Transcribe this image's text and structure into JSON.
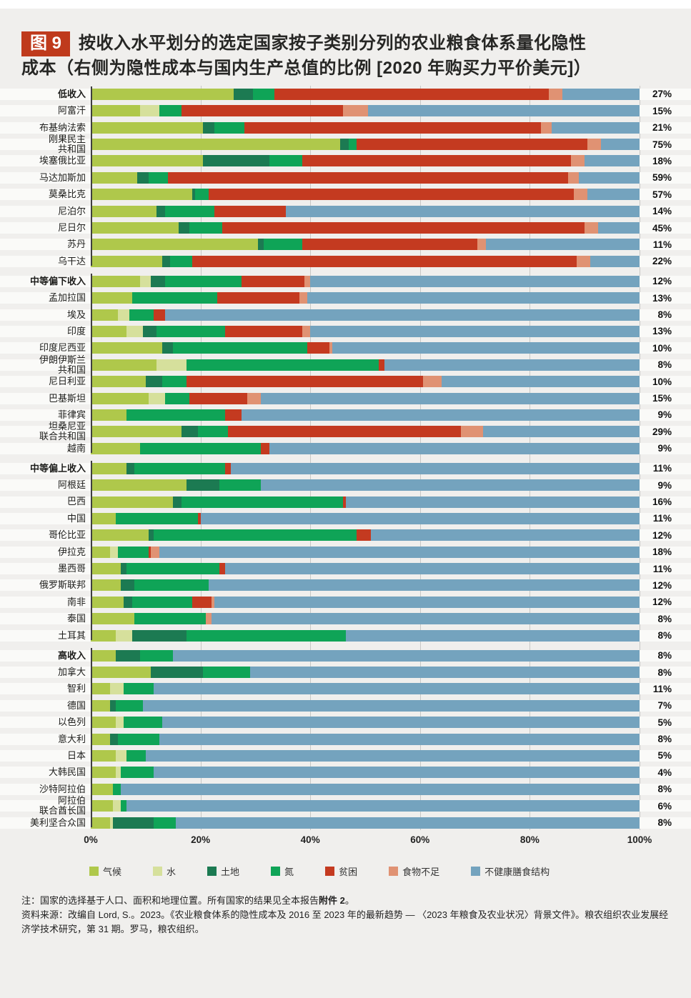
{
  "header": {
    "badge": "图 9",
    "title": "按收入水平划分的选定国家按子类别分列的农业粮食体系量化隐性成本（右侧为隐性成本与国内生产总值的比例 [2020 年购买力平价美元]）"
  },
  "colors": {
    "climate": "#AFC84B",
    "water": "#D6E09C",
    "land": "#1C7A52",
    "nitrogen": "#0FA457",
    "poverty": "#C43A20",
    "undernourishment": "#E09273",
    "unhealthy_diet": "#74A3BE",
    "badge_bg": "#BF3A1C",
    "axis_line": "#3F3F3F",
    "gridline": "#C8C8C5",
    "page_bg": "#F0EFED",
    "row_stripe": "#FAFAF8"
  },
  "chart_data": {
    "type": "bar",
    "stacked": true,
    "orientation": "horizontal",
    "unit": "percent of total hidden costs",
    "xlim": [
      0,
      100
    ],
    "x_ticks": [
      "0%",
      "20%",
      "40%",
      "60%",
      "80%",
      "100%"
    ],
    "gridline_positions": [
      20,
      40,
      60,
      80,
      100
    ],
    "legend": [
      {
        "key": "climate",
        "label": "气候"
      },
      {
        "key": "water",
        "label": "水"
      },
      {
        "key": "land",
        "label": "土地"
      },
      {
        "key": "nitrogen",
        "label": "氮"
      },
      {
        "key": "poverty",
        "label": "贫困"
      },
      {
        "key": "undernourishment",
        "label": "食物不足"
      },
      {
        "key": "unhealthy_diet",
        "label": "不健康膳食结构"
      }
    ],
    "value_order": [
      "climate",
      "water",
      "land",
      "nitrogen",
      "poverty",
      "undernourishment",
      "unhealthy_diet"
    ],
    "right_column_meaning": "隐性成本与国内生产总值的比例",
    "groups": [
      {
        "name": "低收入",
        "rows": [
          {
            "label": "低收入",
            "bold": true,
            "gdp_ratio": "27%",
            "values": [
              26,
              0,
              3.5,
              4,
              50,
              2.5,
              14
            ]
          },
          {
            "label": "阿富汗",
            "bold": false,
            "gdp_ratio": "15%",
            "values": [
              9,
              3.5,
              0,
              4,
              29.5,
              4.5,
              49.5
            ]
          },
          {
            "label": "布基纳法索",
            "bold": false,
            "gdp_ratio": "21%",
            "values": [
              20.5,
              0,
              2,
              5.5,
              54,
              2,
              16
            ]
          },
          {
            "label": "刚果民主\n共和国",
            "bold": false,
            "gdp_ratio": "75%",
            "values": [
              45.5,
              0,
              1.5,
              1.5,
              42,
              2.5,
              7
            ]
          },
          {
            "label": "埃塞俄比亚",
            "bold": false,
            "gdp_ratio": "18%",
            "values": [
              20.5,
              0,
              12,
              6,
              49,
              2.5,
              10
            ]
          },
          {
            "label": "马达加斯加",
            "bold": false,
            "gdp_ratio": "59%",
            "values": [
              8.5,
              0,
              2,
              3.5,
              73,
              2,
              11
            ]
          },
          {
            "label": "莫桑比克",
            "bold": false,
            "gdp_ratio": "57%",
            "values": [
              18.5,
              0,
              0.5,
              2.5,
              66.5,
              2.5,
              9.5
            ]
          },
          {
            "label": "尼泊尔",
            "bold": false,
            "gdp_ratio": "14%",
            "values": [
              12,
              0,
              1.5,
              9,
              13,
              0,
              64.5
            ]
          },
          {
            "label": "尼日尔",
            "bold": false,
            "gdp_ratio": "45%",
            "values": [
              16,
              0,
              2,
              6,
              66,
              2.5,
              7.5
            ]
          },
          {
            "label": "苏丹",
            "bold": false,
            "gdp_ratio": "11%",
            "values": [
              30.5,
              0,
              1,
              7,
              32,
              1.5,
              28
            ]
          },
          {
            "label": "乌干达",
            "bold": false,
            "gdp_ratio": "22%",
            "values": [
              13,
              0,
              1.5,
              4,
              70,
              2.5,
              9
            ]
          }
        ]
      },
      {
        "name": "中等偏下收入",
        "rows": [
          {
            "label": "中等偏下收入",
            "bold": true,
            "gdp_ratio": "12%",
            "values": [
              9,
              2,
              2.5,
              14,
              11.5,
              1,
              60
            ]
          },
          {
            "label": "孟加拉国",
            "bold": false,
            "gdp_ratio": "13%",
            "values": [
              7.5,
              0,
              0,
              15.5,
              15,
              1.5,
              60.5
            ]
          },
          {
            "label": "埃及",
            "bold": false,
            "gdp_ratio": "8%",
            "values": [
              5,
              2,
              0,
              4.5,
              2,
              0,
              86.5
            ]
          },
          {
            "label": "印度",
            "bold": false,
            "gdp_ratio": "13%",
            "values": [
              6.5,
              3,
              2.5,
              12.5,
              14,
              1.5,
              60
            ]
          },
          {
            "label": "印度尼西亚",
            "bold": false,
            "gdp_ratio": "10%",
            "values": [
              13,
              0,
              2,
              24.5,
              4,
              0.5,
              56
            ]
          },
          {
            "label": "伊朗伊斯兰\n共和国",
            "bold": false,
            "gdp_ratio": "8%",
            "values": [
              12,
              5.5,
              0,
              35,
              1,
              0,
              46.5
            ]
          },
          {
            "label": "尼日利亚",
            "bold": false,
            "gdp_ratio": "10%",
            "values": [
              10,
              0,
              3,
              4.5,
              43,
              3.5,
              36
            ]
          },
          {
            "label": "巴基斯坦",
            "bold": false,
            "gdp_ratio": "15%",
            "values": [
              10.5,
              3,
              0,
              4.5,
              10.5,
              2.5,
              69
            ]
          },
          {
            "label": "菲律宾",
            "bold": false,
            "gdp_ratio": "9%",
            "values": [
              6.5,
              0,
              0,
              18,
              3,
              0,
              72.5
            ]
          },
          {
            "label": "坦桑尼亚\n联合共和国",
            "bold": false,
            "gdp_ratio": "29%",
            "values": [
              16.5,
              0,
              3,
              5.5,
              42.5,
              4,
              28.5
            ]
          },
          {
            "label": "越南",
            "bold": false,
            "gdp_ratio": "9%",
            "values": [
              9,
              0,
              0,
              22,
              1.5,
              0,
              67.5
            ]
          }
        ]
      },
      {
        "name": "中等偏上收入",
        "rows": [
          {
            "label": "中等偏上收入",
            "bold": true,
            "gdp_ratio": "11%",
            "values": [
              6.5,
              0,
              1.5,
              16.5,
              1,
              0,
              74.5
            ]
          },
          {
            "label": "阿根廷",
            "bold": false,
            "gdp_ratio": "9%",
            "values": [
              17.5,
              0,
              6,
              7.5,
              0,
              0,
              69
            ]
          },
          {
            "label": "巴西",
            "bold": false,
            "gdp_ratio": "16%",
            "values": [
              15,
              0,
              1.5,
              29.5,
              0.5,
              0,
              53.5
            ]
          },
          {
            "label": "中国",
            "bold": false,
            "gdp_ratio": "11%",
            "values": [
              4.5,
              0,
              0,
              15,
              0.5,
              0,
              80
            ]
          },
          {
            "label": "哥伦比亚",
            "bold": false,
            "gdp_ratio": "12%",
            "values": [
              10.5,
              0,
              1,
              37,
              2.5,
              0,
              49
            ]
          },
          {
            "label": "伊拉克",
            "bold": false,
            "gdp_ratio": "18%",
            "values": [
              3.5,
              1.5,
              0,
              5.5,
              0.5,
              1.5,
              87.5
            ]
          },
          {
            "label": "墨西哥",
            "bold": false,
            "gdp_ratio": "11%",
            "values": [
              5.5,
              0,
              1,
              17,
              1,
              0,
              75.5
            ]
          },
          {
            "label": "俄罗斯联邦",
            "bold": false,
            "gdp_ratio": "12%",
            "values": [
              5.5,
              0,
              2.5,
              13.5,
              0,
              0,
              78.5
            ]
          },
          {
            "label": "南非",
            "bold": false,
            "gdp_ratio": "12%",
            "values": [
              6,
              0,
              1.5,
              11,
              3.5,
              0.5,
              77.5
            ]
          },
          {
            "label": "泰国",
            "bold": false,
            "gdp_ratio": "8%",
            "values": [
              8,
              0,
              0,
              13,
              0,
              1,
              78
            ]
          },
          {
            "label": "土耳其",
            "bold": false,
            "gdp_ratio": "8%",
            "values": [
              4.5,
              3,
              10,
              29,
              0,
              0,
              53.5
            ]
          }
        ]
      },
      {
        "name": "高收入",
        "rows": [
          {
            "label": "高收入",
            "bold": true,
            "gdp_ratio": "8%",
            "values": [
              4.5,
              0,
              4.5,
              6,
              0,
              0,
              85
            ]
          },
          {
            "label": "加拿大",
            "bold": false,
            "gdp_ratio": "8%",
            "values": [
              11,
              0,
              9.5,
              8.5,
              0,
              0,
              71
            ]
          },
          {
            "label": "智利",
            "bold": false,
            "gdp_ratio": "11%",
            "values": [
              3.5,
              2.5,
              0,
              5.5,
              0,
              0,
              88.5
            ]
          },
          {
            "label": "德国",
            "bold": false,
            "gdp_ratio": "7%",
            "values": [
              3.5,
              0,
              1,
              5,
              0,
              0,
              90.5
            ]
          },
          {
            "label": "以色列",
            "bold": false,
            "gdp_ratio": "5%",
            "values": [
              4.5,
              1.5,
              0,
              7,
              0,
              0,
              87
            ]
          },
          {
            "label": "意大利",
            "bold": false,
            "gdp_ratio": "8%",
            "values": [
              3.5,
              0,
              1.5,
              7.5,
              0,
              0,
              87.5
            ]
          },
          {
            "label": "日本",
            "bold": false,
            "gdp_ratio": "5%",
            "values": [
              4.5,
              2,
              0,
              3.5,
              0,
              0,
              90
            ]
          },
          {
            "label": "大韩民国",
            "bold": false,
            "gdp_ratio": "4%",
            "values": [
              4.5,
              1,
              0,
              6,
              0,
              0,
              88.5
            ]
          },
          {
            "label": "沙特阿拉伯",
            "bold": false,
            "gdp_ratio": "8%",
            "values": [
              4,
              0,
              0,
              1.5,
              0,
              0,
              94.5
            ]
          },
          {
            "label": "阿拉伯\n联合酋长国",
            "bold": false,
            "gdp_ratio": "6%",
            "values": [
              4,
              1.5,
              0,
              1,
              0,
              0,
              93.5
            ]
          },
          {
            "label": "美利坚合众国",
            "bold": false,
            "gdp_ratio": "8%",
            "values": [
              3.5,
              0.5,
              7.5,
              4,
              0,
              0,
              84.5
            ]
          }
        ]
      }
    ]
  },
  "notes": {
    "note_prefix": "注：国家的选择基于人口、面积和地理位置。所有国家的结果见全本报告",
    "note_bold": "附件 2",
    "note_suffix": "。",
    "source": "资料来源：改编自 Lord, S.。2023。《农业粮食体系的隐性成本及 2016 至 2023 年的最新趋势 — 〈2023 年粮食及农业状况〉背景文件》。粮农组织农业发展经济学技术研究，第 31 期。罗马，粮农组织。"
  }
}
